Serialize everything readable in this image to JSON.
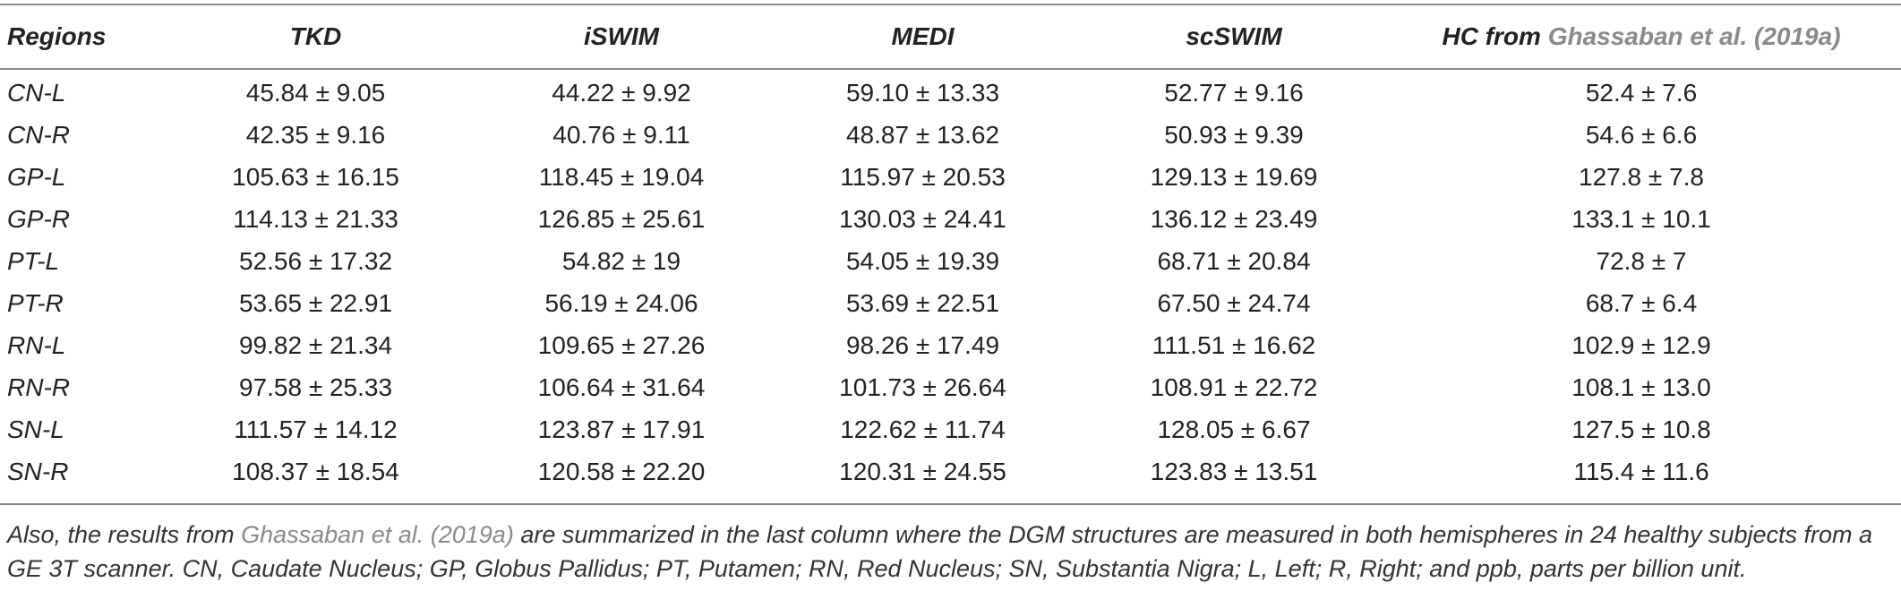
{
  "table": {
    "headers": {
      "regions": "Regions",
      "tkd": "TKD",
      "iswim": "iSWIM",
      "medi": "MEDI",
      "scswim": "scSWIM",
      "hc_prefix": "HC from",
      "hc_cite": "Ghassaban et al. (2019a)"
    },
    "rows": [
      {
        "region": "CN-L",
        "tkd": "45.84 ± 9.05",
        "iswim": "44.22 ± 9.92",
        "medi": "59.10 ± 13.33",
        "scswim": "52.77 ± 9.16",
        "hc": "52.4 ± 7.6"
      },
      {
        "region": "CN-R",
        "tkd": "42.35 ± 9.16",
        "iswim": "40.76 ± 9.11",
        "medi": "48.87 ± 13.62",
        "scswim": "50.93 ± 9.39",
        "hc": "54.6 ± 6.6"
      },
      {
        "region": "GP-L",
        "tkd": "105.63 ± 16.15",
        "iswim": "118.45 ± 19.04",
        "medi": "115.97 ± 20.53",
        "scswim": "129.13 ± 19.69",
        "hc": "127.8 ± 7.8"
      },
      {
        "region": "GP-R",
        "tkd": "114.13 ± 21.33",
        "iswim": "126.85 ± 25.61",
        "medi": "130.03 ± 24.41",
        "scswim": "136.12 ± 23.49",
        "hc": "133.1 ± 10.1"
      },
      {
        "region": "PT-L",
        "tkd": "52.56 ± 17.32",
        "iswim": "54.82 ± 19",
        "medi": "54.05 ± 19.39",
        "scswim": "68.71 ± 20.84",
        "hc": "72.8 ± 7"
      },
      {
        "region": "PT-R",
        "tkd": "53.65 ± 22.91",
        "iswim": "56.19 ± 24.06",
        "medi": "53.69 ± 22.51",
        "scswim": "67.50 ± 24.74",
        "hc": "68.7 ± 6.4"
      },
      {
        "region": "RN-L",
        "tkd": "99.82 ± 21.34",
        "iswim": "109.65 ± 27.26",
        "medi": "98.26 ± 17.49",
        "scswim": "111.51 ± 16.62",
        "hc": "102.9 ± 12.9"
      },
      {
        "region": "RN-R",
        "tkd": "97.58 ± 25.33",
        "iswim": "106.64 ± 31.64",
        "medi": "101.73 ± 26.64",
        "scswim": "108.91 ± 22.72",
        "hc": "108.1 ± 13.0"
      },
      {
        "region": "SN-L",
        "tkd": "111.57 ± 14.12",
        "iswim": "123.87 ± 17.91",
        "medi": "122.62 ± 11.74",
        "scswim": "128.05 ± 6.67",
        "hc": "127.5 ± 10.8"
      },
      {
        "region": "SN-R",
        "tkd": "108.37 ± 18.54",
        "iswim": "120.58 ± 22.20",
        "medi": "120.31 ± 24.55",
        "scswim": "123.83 ± 13.51",
        "hc": "115.4 ± 11.6"
      }
    ]
  },
  "footnote": {
    "part1": "Also, the results from",
    "cite": "Ghassaban et al. (2019a)",
    "part2": "are summarized in the last column where the DGM structures are measured in both hemispheres in 24 healthy subjects from a GE 3T scanner. CN, Caudate Nucleus; GP, Globus Pallidus; PT, Putamen; RN, Red Nucleus; SN, Substantia Nigra; L, Left; R, Right; and ppb, parts per billion unit."
  },
  "colors": {
    "text": "#222222",
    "citation": "#8a8a8a",
    "rule": "#8a8a8a"
  }
}
